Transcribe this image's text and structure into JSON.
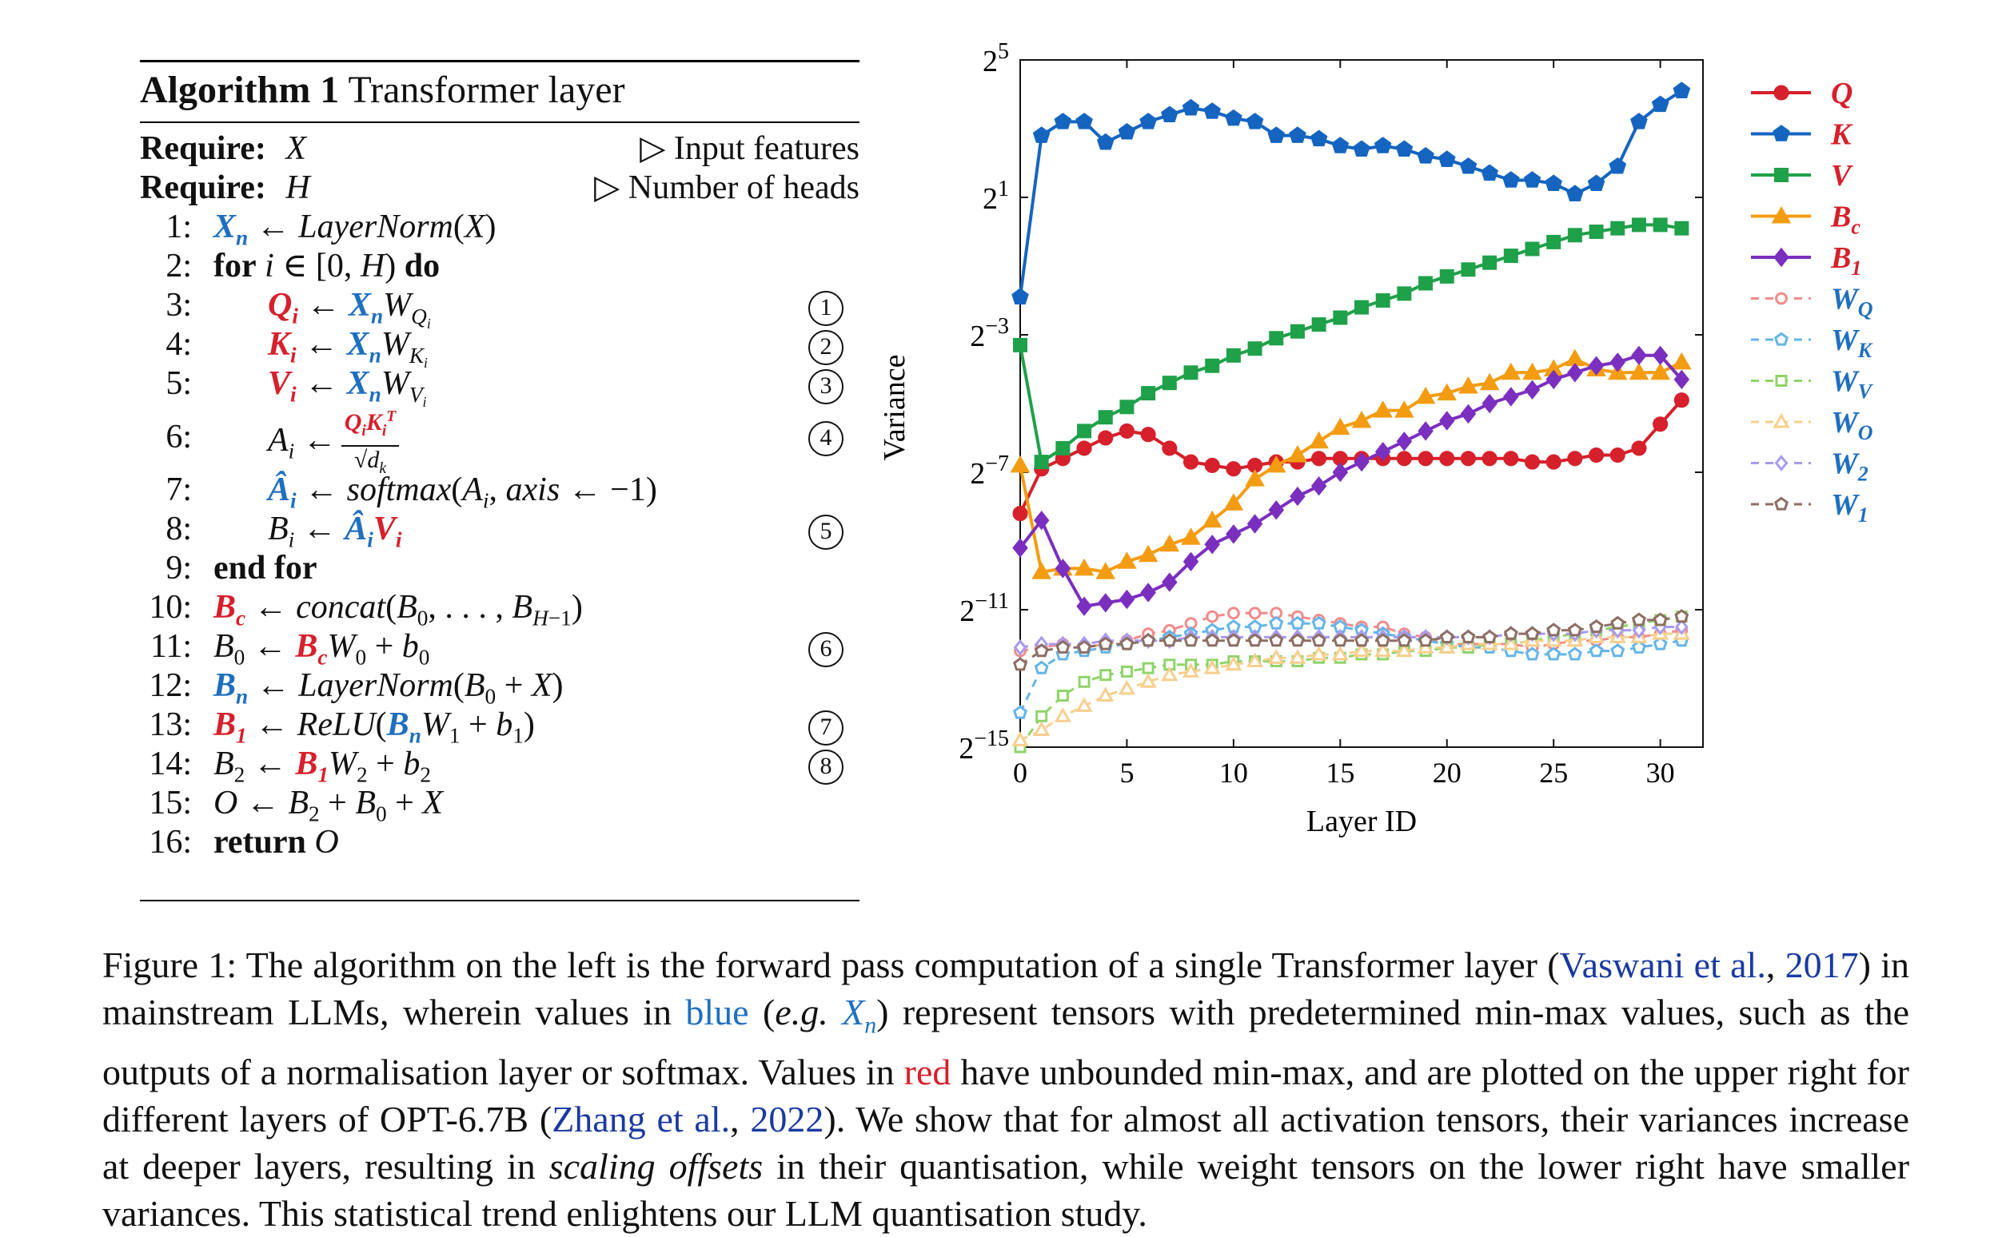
{
  "algorithm": {
    "label": "Algorithm 1",
    "title": "Transformer layer",
    "require1": {
      "keyword": "Require:",
      "var": "X",
      "comment": "▷ Input features"
    },
    "require2": {
      "keyword": "Require:",
      "var": "H",
      "comment": "▷ Number of heads"
    },
    "lines": [
      {
        "n": "1:",
        "circle": ""
      },
      {
        "n": "2:",
        "circle": ""
      },
      {
        "n": "3:",
        "circle": "1"
      },
      {
        "n": "4:",
        "circle": "2"
      },
      {
        "n": "5:",
        "circle": "3"
      },
      {
        "n": "6:",
        "circle": "4"
      },
      {
        "n": "7:",
        "circle": ""
      },
      {
        "n": "8:",
        "circle": "5"
      },
      {
        "n": "9:",
        "circle": ""
      },
      {
        "n": "10:",
        "circle": ""
      },
      {
        "n": "11:",
        "circle": "6"
      },
      {
        "n": "12:",
        "circle": ""
      },
      {
        "n": "13:",
        "circle": "7"
      },
      {
        "n": "14:",
        "circle": "8"
      },
      {
        "n": "15:",
        "circle": ""
      },
      {
        "n": "16:",
        "circle": ""
      }
    ]
  },
  "caption": {
    "prefix": "Figure 1: The algorithm on the left is the forward pass computation of a single Transformer layer (",
    "cite1": "Vaswani et al.",
    "sep1": ", ",
    "cite1_year": "2017",
    "part2": ") in mainstream LLMs, wherein values in ",
    "blue_word": "blue",
    "part3": " (",
    "eg": "e.g.",
    "part4": ") represent tensors with predetermined min-max values, such as the outputs of a normalisation layer or softmax. Values in ",
    "red_word": "red",
    "part5": " have unbounded min-max, and are plotted on the upper right for different layers of OPT-6.7B (",
    "cite2": "Zhang et al.",
    "sep2": ", ",
    "cite2_year": "2022",
    "part6": "). We show that for almost all activation tensors, their variances increase at deeper layers, resulting in ",
    "italic": "scaling offsets",
    "part7": " in their quantisation, while weight tensors on the lower right have smaller variances. This statistical trend enlightens our LLM quantisation study."
  },
  "chart_data": {
    "type": "line",
    "xlabel": "Layer ID",
    "ylabel": "Variance",
    "xlim": [
      0,
      32
    ],
    "ylim_log2": [
      -15,
      5
    ],
    "xticks": [
      0,
      5,
      10,
      15,
      20,
      25,
      30
    ],
    "yticks_log2": [
      5,
      1,
      -3,
      -7,
      -11,
      -15
    ],
    "ytick_labels": [
      "2^5",
      "2^1",
      "2^-3",
      "2^-7",
      "2^-11",
      "2^-15"
    ],
    "x": [
      0,
      1,
      2,
      3,
      4,
      5,
      6,
      7,
      8,
      9,
      10,
      11,
      12,
      13,
      14,
      15,
      16,
      17,
      18,
      19,
      20,
      21,
      22,
      23,
      24,
      25,
      26,
      27,
      28,
      29,
      30,
      31
    ],
    "series": [
      {
        "name": "Q",
        "color": "#d6202b",
        "marker": "circle",
        "style": "solid",
        "values_log2": [
          -8.2,
          -6.9,
          -6.6,
          -6.3,
          -6.0,
          -5.8,
          -5.9,
          -6.3,
          -6.7,
          -6.8,
          -6.9,
          -6.8,
          -6.7,
          -6.7,
          -6.6,
          -6.6,
          -6.6,
          -6.6,
          -6.6,
          -6.6,
          -6.6,
          -6.6,
          -6.6,
          -6.6,
          -6.7,
          -6.7,
          -6.6,
          -6.5,
          -6.5,
          -6.3,
          -5.6,
          -4.9
        ]
      },
      {
        "name": "K",
        "color": "#1565c0",
        "marker": "pentagon",
        "style": "solid",
        "values_log2": [
          -1.9,
          2.8,
          3.2,
          3.2,
          2.6,
          2.9,
          3.2,
          3.4,
          3.6,
          3.5,
          3.3,
          3.2,
          2.8,
          2.8,
          2.7,
          2.5,
          2.4,
          2.5,
          2.4,
          2.2,
          2.1,
          1.9,
          1.7,
          1.5,
          1.5,
          1.4,
          1.1,
          1.4,
          1.9,
          3.2,
          3.7,
          4.1
        ]
      },
      {
        "name": "V",
        "color": "#1fa14a",
        "marker": "square",
        "style": "solid",
        "values_log2": [
          -3.3,
          -6.7,
          -6.3,
          -5.8,
          -5.4,
          -5.1,
          -4.7,
          -4.4,
          -4.1,
          -3.9,
          -3.6,
          -3.4,
          -3.1,
          -2.9,
          -2.7,
          -2.5,
          -2.2,
          -2.0,
          -1.8,
          -1.5,
          -1.3,
          -1.1,
          -0.9,
          -0.7,
          -0.5,
          -0.3,
          -0.1,
          0.0,
          0.1,
          0.2,
          0.2,
          0.1
        ]
      },
      {
        "name": "Bc",
        "color": "#f39c12",
        "marker": "triangle",
        "style": "solid",
        "values_log2": [
          -6.8,
          -9.9,
          -9.8,
          -9.8,
          -9.9,
          -9.6,
          -9.4,
          -9.1,
          -8.9,
          -8.4,
          -7.9,
          -7.2,
          -6.8,
          -6.5,
          -6.1,
          -5.7,
          -5.5,
          -5.2,
          -5.2,
          -4.8,
          -4.7,
          -4.5,
          -4.4,
          -4.1,
          -4.1,
          -4.0,
          -3.7,
          -4.0,
          -4.1,
          -4.1,
          -4.1,
          -3.8
        ]
      },
      {
        "name": "B1",
        "color": "#7b2fbe",
        "marker": "diamond",
        "style": "solid",
        "values_log2": [
          -9.2,
          -8.4,
          -9.8,
          -10.9,
          -10.8,
          -10.7,
          -10.5,
          -10.2,
          -9.6,
          -9.1,
          -8.8,
          -8.5,
          -8.1,
          -7.7,
          -7.4,
          -7.0,
          -6.7,
          -6.4,
          -6.1,
          -5.8,
          -5.5,
          -5.3,
          -5.0,
          -4.8,
          -4.6,
          -4.3,
          -4.1,
          -3.9,
          -3.8,
          -3.6,
          -3.6,
          -4.3
        ]
      },
      {
        "name": "WQ",
        "color": "#f08c8c",
        "marker": "circle-open",
        "style": "dashed",
        "values_log2": [
          -12.2,
          -12.1,
          -12.0,
          -12.1,
          -12.0,
          -11.9,
          -11.7,
          -11.6,
          -11.4,
          -11.2,
          -11.1,
          -11.1,
          -11.1,
          -11.2,
          -11.3,
          -11.4,
          -11.5,
          -11.5,
          -11.7,
          -11.8,
          -12.0,
          -12.0,
          -12.0,
          -12.0,
          -12.1,
          -12.0,
          -11.9,
          -11.9,
          -11.8,
          -11.8,
          -11.7,
          -11.6
        ]
      },
      {
        "name": "WK",
        "color": "#64b5e8",
        "marker": "pentagon-open",
        "style": "dashed",
        "values_log2": [
          -14.0,
          -12.7,
          -12.3,
          -12.2,
          -12.1,
          -12.0,
          -11.9,
          -11.8,
          -11.7,
          -11.6,
          -11.5,
          -11.5,
          -11.4,
          -11.4,
          -11.4,
          -11.5,
          -11.6,
          -11.7,
          -11.8,
          -11.9,
          -12.0,
          -12.1,
          -12.1,
          -12.2,
          -12.3,
          -12.3,
          -12.3,
          -12.2,
          -12.2,
          -12.1,
          -12.0,
          -11.9
        ]
      },
      {
        "name": "WV",
        "color": "#8fd46a",
        "marker": "square-open",
        "style": "dashed",
        "values_log2": [
          -15.0,
          -14.1,
          -13.5,
          -13.1,
          -12.9,
          -12.8,
          -12.7,
          -12.6,
          -12.6,
          -12.6,
          -12.5,
          -12.5,
          -12.5,
          -12.5,
          -12.4,
          -12.4,
          -12.3,
          -12.3,
          -12.2,
          -12.2,
          -12.1,
          -12.1,
          -12.0,
          -12.0,
          -11.9,
          -11.8,
          -11.7,
          -11.6,
          -11.5,
          -11.4,
          -11.3,
          -11.2
        ]
      },
      {
        "name": "WO",
        "color": "#f7cf8e",
        "marker": "triangle-open",
        "style": "dashed",
        "values_log2": [
          -14.8,
          -14.5,
          -14.1,
          -13.8,
          -13.5,
          -13.3,
          -13.1,
          -12.9,
          -12.8,
          -12.7,
          -12.6,
          -12.5,
          -12.4,
          -12.4,
          -12.3,
          -12.3,
          -12.2,
          -12.2,
          -12.2,
          -12.1,
          -12.1,
          -12.0,
          -12.0,
          -12.0,
          -11.9,
          -11.9,
          -11.9,
          -11.8,
          -11.8,
          -11.8,
          -11.7,
          -11.7
        ]
      },
      {
        "name": "W2",
        "color": "#a89af0",
        "marker": "diamond-open",
        "style": "dashed",
        "values_log2": [
          -12.1,
          -12.0,
          -12.0,
          -12.0,
          -11.9,
          -11.9,
          -11.9,
          -11.9,
          -11.8,
          -11.8,
          -11.8,
          -11.8,
          -11.8,
          -11.8,
          -11.8,
          -11.8,
          -11.8,
          -11.8,
          -11.8,
          -11.8,
          -11.8,
          -11.8,
          -11.8,
          -11.7,
          -11.7,
          -11.7,
          -11.7,
          -11.6,
          -11.6,
          -11.6,
          -11.5,
          -11.5
        ]
      },
      {
        "name": "W1",
        "color": "#8d6e63",
        "marker": "pentagon-open-dark",
        "style": "dashed",
        "values_log2": [
          -12.6,
          -12.2,
          -12.1,
          -12.1,
          -12.0,
          -12.0,
          -11.9,
          -11.9,
          -11.9,
          -11.9,
          -11.9,
          -11.9,
          -11.9,
          -11.9,
          -11.9,
          -11.9,
          -11.9,
          -11.9,
          -11.9,
          -11.9,
          -11.8,
          -11.8,
          -11.8,
          -11.7,
          -11.7,
          -11.6,
          -11.6,
          -11.5,
          -11.4,
          -11.3,
          -11.3,
          -11.2
        ]
      }
    ],
    "legend": {
      "position": "right-outside",
      "entries": [
        {
          "label": "Q",
          "sub": "",
          "color": "#d6202b",
          "text_color": "#d6202b"
        },
        {
          "label": "K",
          "sub": "",
          "color": "#1565c0",
          "text_color": "#d6202b"
        },
        {
          "label": "V",
          "sub": "",
          "color": "#1fa14a",
          "text_color": "#d6202b"
        },
        {
          "label": "B",
          "sub": "c",
          "color": "#f39c12",
          "text_color": "#d6202b"
        },
        {
          "label": "B",
          "sub": "1",
          "color": "#7b2fbe",
          "text_color": "#d6202b"
        },
        {
          "label": "W",
          "sub": "Q",
          "color": "#f08c8c",
          "text_color": "#1f6fbf"
        },
        {
          "label": "W",
          "sub": "K",
          "color": "#64b5e8",
          "text_color": "#1f6fbf"
        },
        {
          "label": "W",
          "sub": "V",
          "color": "#8fd46a",
          "text_color": "#1f6fbf"
        },
        {
          "label": "W",
          "sub": "O",
          "color": "#f7cf8e",
          "text_color": "#1f6fbf"
        },
        {
          "label": "W",
          "sub": "2",
          "color": "#a89af0",
          "text_color": "#1f6fbf"
        },
        {
          "label": "W",
          "sub": "1",
          "color": "#8d6e63",
          "text_color": "#1f6fbf"
        }
      ]
    }
  }
}
